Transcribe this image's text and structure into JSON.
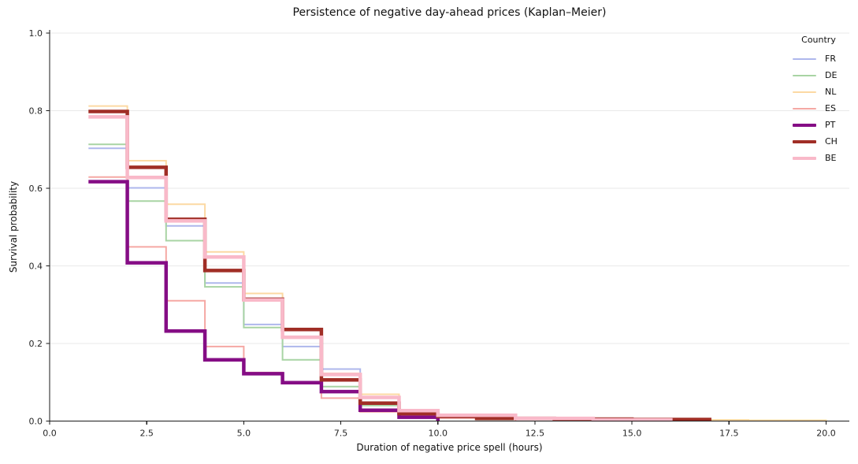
{
  "figure": {
    "title": "Persistence of negative day-ahead prices (Kaplan–Meier)",
    "xlabel": "Duration of negative price spell (hours)",
    "ylabel": "Survival probability"
  },
  "legend": {
    "title": "Country",
    "entries": [
      "FR",
      "DE",
      "NL",
      "ES",
      "PT",
      "CH",
      "BE"
    ]
  },
  "colors": {
    "background": "#ffffff",
    "gridline": "#e9e9e9",
    "spine": "#1a1a1a",
    "tick_label": "#262626",
    "title_text": "#111111"
  },
  "chart_data": {
    "type": "line",
    "subtype": "kaplan-meier-step",
    "title": "Persistence of negative day-ahead prices (Kaplan–Meier)",
    "xlabel": "Duration of negative price spell (hours)",
    "ylabel": "Survival probability",
    "xlim": [
      0,
      20.6
    ],
    "ylim": [
      0,
      1.0
    ],
    "xticks": [
      0.0,
      2.5,
      5.0,
      7.5,
      10.0,
      12.5,
      15.0,
      17.5,
      20.0
    ],
    "yticks": [
      0.0,
      0.2,
      0.4,
      0.6,
      0.8,
      1.0
    ],
    "grid": "horizontal-only",
    "legend_title": "Country",
    "legend_position": "upper right",
    "series_note": "steps are [hour, survival] pairs; each survival value holds from that hour until the next listed hour; a final value of 0 is where the curve drops to the axis",
    "series": [
      {
        "name": "FR",
        "color": "#aeb7ec",
        "line_width": 2,
        "steps": [
          [
            1,
            0.703
          ],
          [
            2,
            0.601
          ],
          [
            3,
            0.503
          ],
          [
            4,
            0.356
          ],
          [
            5,
            0.249
          ],
          [
            6,
            0.192
          ],
          [
            7,
            0.134
          ],
          [
            8,
            0.069
          ],
          [
            9,
            0.026
          ],
          [
            10,
            0
          ]
        ]
      },
      {
        "name": "DE",
        "color": "#a8d4a4",
        "line_width": 2,
        "steps": [
          [
            1,
            0.713
          ],
          [
            2,
            0.567
          ],
          [
            3,
            0.465
          ],
          [
            4,
            0.346
          ],
          [
            5,
            0.241
          ],
          [
            6,
            0.158
          ],
          [
            7,
            0.089
          ],
          [
            8,
            0.04
          ],
          [
            9,
            0.01
          ],
          [
            11,
            0.004
          ],
          [
            17,
            0.003
          ],
          [
            18,
            0
          ]
        ]
      },
      {
        "name": "NL",
        "color": "#fcd9a3",
        "line_width": 2,
        "steps": [
          [
            1,
            0.812
          ],
          [
            2,
            0.671
          ],
          [
            3,
            0.559
          ],
          [
            4,
            0.436
          ],
          [
            5,
            0.329
          ],
          [
            6,
            0.218
          ],
          [
            7,
            0.123
          ],
          [
            8,
            0.069
          ],
          [
            9,
            0.026
          ],
          [
            10,
            0.013
          ],
          [
            11,
            0.006
          ],
          [
            14,
            0.003
          ],
          [
            18,
            0.002
          ],
          [
            20,
            0
          ]
        ]
      },
      {
        "name": "ES",
        "color": "#f5a8a4",
        "line_width": 2,
        "steps": [
          [
            1,
            0.629
          ],
          [
            2,
            0.449
          ],
          [
            3,
            0.31
          ],
          [
            4,
            0.192
          ],
          [
            5,
            0.125
          ],
          [
            6,
            0.098
          ],
          [
            7,
            0.059
          ],
          [
            8,
            0.024
          ],
          [
            9,
            0.013
          ],
          [
            10,
            0.008
          ],
          [
            12,
            0
          ]
        ]
      },
      {
        "name": "PT",
        "color": "#850d85",
        "line_width": 4.5,
        "steps": [
          [
            1,
            0.617
          ],
          [
            2,
            0.408
          ],
          [
            3,
            0.232
          ],
          [
            4,
            0.158
          ],
          [
            5,
            0.122
          ],
          [
            6,
            0.099
          ],
          [
            7,
            0.076
          ],
          [
            8,
            0.028
          ],
          [
            9,
            0.01
          ],
          [
            10,
            0
          ]
        ]
      },
      {
        "name": "CH",
        "color": "#a02e26",
        "line_width": 4.5,
        "steps": [
          [
            1,
            0.798
          ],
          [
            2,
            0.654
          ],
          [
            3,
            0.52
          ],
          [
            4,
            0.388
          ],
          [
            5,
            0.314
          ],
          [
            6,
            0.236
          ],
          [
            7,
            0.106
          ],
          [
            8,
            0.046
          ],
          [
            9,
            0.019
          ],
          [
            10,
            0.012
          ],
          [
            11,
            0.007
          ],
          [
            13,
            0.005
          ],
          [
            15,
            0.004
          ],
          [
            17,
            0
          ]
        ]
      },
      {
        "name": "BE",
        "color": "#f9b9c9",
        "line_width": 4.5,
        "steps": [
          [
            1,
            0.784
          ],
          [
            2,
            0.628
          ],
          [
            3,
            0.516
          ],
          [
            4,
            0.423
          ],
          [
            5,
            0.312
          ],
          [
            6,
            0.216
          ],
          [
            7,
            0.12
          ],
          [
            8,
            0.061
          ],
          [
            9,
            0.027
          ],
          [
            10,
            0.015
          ],
          [
            12,
            0.007
          ],
          [
            14,
            0.003
          ],
          [
            16,
            0
          ]
        ]
      }
    ]
  }
}
